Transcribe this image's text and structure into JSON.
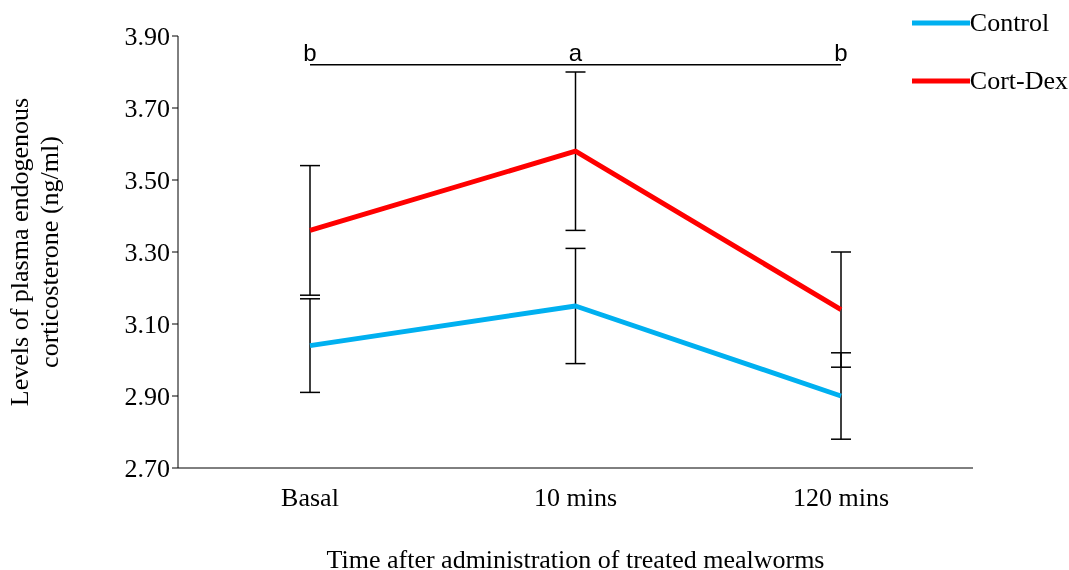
{
  "chart_data": {
    "type": "line",
    "xlabel": "Time after administration of treated mealworms",
    "ylabel": "Levels of plasma endogenous corticosterone (ng/ml)",
    "categories": [
      "Basal",
      "10 mins",
      "120 mins"
    ],
    "series": [
      {
        "name": "Control",
        "color": "#00b0f0",
        "values": [
          3.04,
          3.15,
          2.9
        ],
        "errors": [
          0.13,
          0.16,
          0.12
        ]
      },
      {
        "name": "Cort-Dex",
        "color": "#ff0000",
        "values": [
          3.36,
          3.58,
          3.14
        ],
        "errors": [
          0.18,
          0.22,
          0.16
        ]
      }
    ],
    "ylim": [
      2.7,
      3.9
    ],
    "yticks": [
      {
        "value": 2.7,
        "label": "2.70"
      },
      {
        "value": 2.9,
        "label": "2.90"
      },
      {
        "value": 3.1,
        "label": "3.10"
      },
      {
        "value": 3.3,
        "label": "3.30"
      },
      {
        "value": 3.5,
        "label": "3.50"
      },
      {
        "value": 3.7,
        "label": "3.70"
      },
      {
        "value": 3.9,
        "label": "3.90"
      }
    ],
    "annotations": [
      "b",
      "a",
      "b"
    ],
    "ref_lines": [
      {
        "axis": "y",
        "value": 3.82,
        "color": "#000000"
      }
    ],
    "grid": false,
    "legend": "top right",
    "marker": "none",
    "line_style": "solid"
  }
}
